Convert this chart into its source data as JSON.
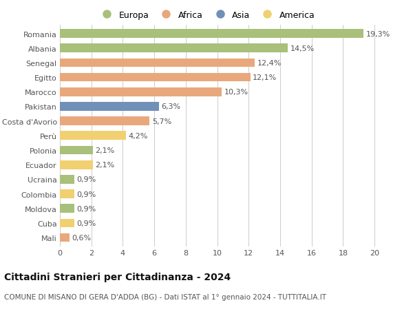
{
  "countries": [
    "Romania",
    "Albania",
    "Senegal",
    "Egitto",
    "Marocco",
    "Pakistan",
    "Costa d'Avorio",
    "Perù",
    "Polonia",
    "Ecuador",
    "Ucraina",
    "Colombia",
    "Moldova",
    "Cuba",
    "Mali"
  ],
  "values": [
    19.3,
    14.5,
    12.4,
    12.1,
    10.3,
    6.3,
    5.7,
    4.2,
    2.1,
    2.1,
    0.9,
    0.9,
    0.9,
    0.9,
    0.6
  ],
  "continents": [
    "Europa",
    "Europa",
    "Africa",
    "Africa",
    "Africa",
    "Asia",
    "Africa",
    "America",
    "Europa",
    "America",
    "Europa",
    "America",
    "Europa",
    "America",
    "Africa"
  ],
  "colors": {
    "Europa": "#a8c07a",
    "Africa": "#e8a87c",
    "Asia": "#7090b8",
    "America": "#f0d070"
  },
  "legend_order": [
    "Europa",
    "Africa",
    "Asia",
    "America"
  ],
  "title": "Cittadini Stranieri per Cittadinanza - 2024",
  "subtitle": "COMUNE DI MISANO DI GERA D'ADDA (BG) - Dati ISTAT al 1° gennaio 2024 - TUTTITALIA.IT",
  "xlim": [
    0,
    21
  ],
  "xticks": [
    0,
    2,
    4,
    6,
    8,
    10,
    12,
    14,
    16,
    18,
    20
  ],
  "background_color": "#ffffff",
  "grid_color": "#cccccc",
  "bar_height": 0.6,
  "label_fontsize": 8,
  "tick_fontsize": 8,
  "title_fontsize": 10,
  "subtitle_fontsize": 7.5
}
